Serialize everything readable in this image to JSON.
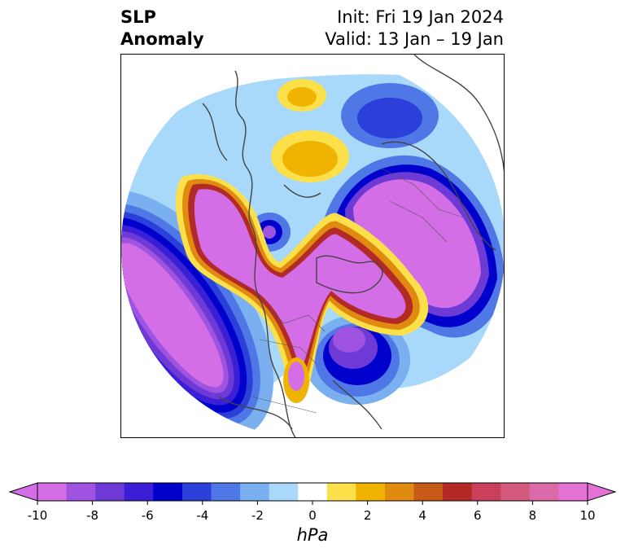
{
  "title": {
    "left_line1": "SLP",
    "left_line2": "Anomaly",
    "init": "Init: Fri 19 Jan 2024",
    "valid": "Valid: 13 Jan – 19 Jan"
  },
  "colorbar": {
    "unit": "hPa",
    "ticks": [
      "-10",
      "-8",
      "-6",
      "-4",
      "-2",
      "0",
      "2",
      "4",
      "6",
      "8",
      "10"
    ],
    "levels": [
      -10,
      -9,
      -8,
      -7,
      -6,
      -5,
      -4,
      -3,
      -2,
      -1,
      1,
      2,
      3,
      4,
      5,
      6,
      7,
      8,
      9,
      10
    ],
    "colors": [
      "#d46ee6",
      "#9e54e0",
      "#6d3ad6",
      "#3a1fd6",
      "#0000cc",
      "#2b3fd9",
      "#4f78e6",
      "#7aaff0",
      "#a8d8fa",
      "#ffffff",
      "#fbe04a",
      "#f0b400",
      "#e08a10",
      "#c85a18",
      "#b22a28",
      "#c8405a",
      "#d45a80",
      "#dc6aa8",
      "#e472d4"
    ],
    "extend": "both"
  },
  "map": {
    "projection": "north-polar-stereographic",
    "field": "SLP anomaly"
  }
}
